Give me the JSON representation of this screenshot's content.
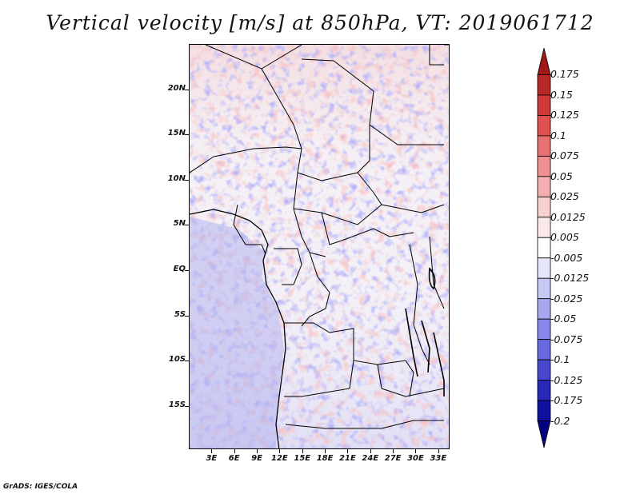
{
  "title": "Vertical velocity [m/s] at 850hPa, VT: 2019061712",
  "credit": "GrADS: IGES/COLA",
  "map": {
    "lat_labels": [
      "20N",
      "15N",
      "10N",
      "5N",
      "EQ",
      "5S",
      "10S",
      "15S"
    ],
    "lat_values": [
      20,
      15,
      10,
      5,
      0,
      -5,
      -10,
      -15
    ],
    "lon_labels": [
      "3E",
      "6E",
      "9E",
      "12E",
      "15E",
      "18E",
      "21E",
      "24E",
      "27E",
      "30E",
      "33E"
    ],
    "lon_values": [
      3,
      6,
      9,
      12,
      15,
      18,
      21,
      24,
      27,
      30,
      33
    ],
    "lon_range": [
      0,
      34.5
    ],
    "lat_range": [
      -19.8,
      25
    ]
  },
  "colorbar": {
    "labels": [
      "0.175",
      "0.15",
      "0.125",
      "0.1",
      "0.075",
      "0.05",
      "0.025",
      "0.0125",
      "0.005",
      "-0.005",
      "-0.0125",
      "-0.025",
      "-0.05",
      "-0.075",
      "-0.1",
      "-0.125",
      "-0.175",
      "-0.2"
    ],
    "colors": [
      "#a01818",
      "#b82828",
      "#d03838",
      "#e05050",
      "#e87070",
      "#ee9090",
      "#f4b0b0",
      "#f8d0d0",
      "#fbe8e8",
      "#ffffff",
      "#e6e6fb",
      "#c8c8f6",
      "#a8a8f0",
      "#8888ea",
      "#6868e0",
      "#4848d0",
      "#2828b8",
      "#1010a0",
      "#000080"
    ]
  }
}
